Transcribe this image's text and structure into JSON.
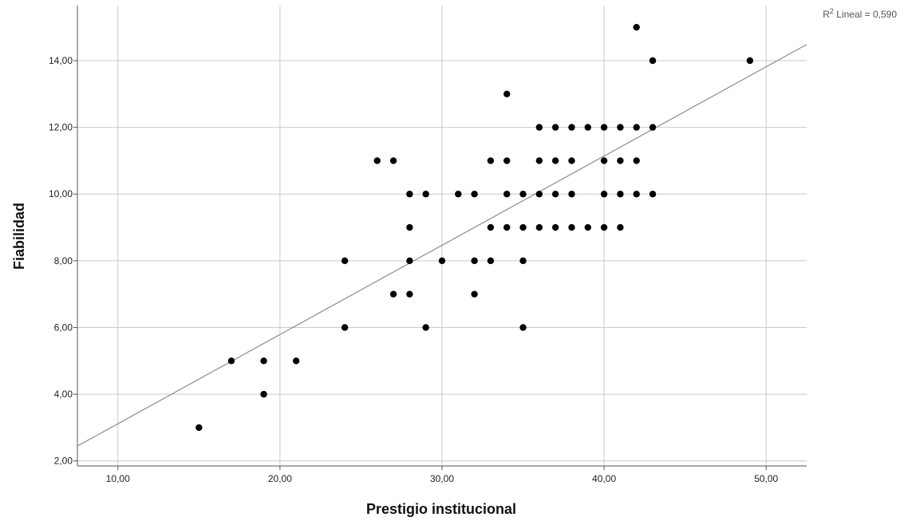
{
  "chart_data": {
    "type": "scatter",
    "xlabel": "Prestigio institucional",
    "ylabel": "Fiabilidad",
    "xlim": [
      7.5,
      52.5
    ],
    "ylim": [
      1.85,
      15.65
    ],
    "x_ticks": [
      10,
      20,
      30,
      40,
      50
    ],
    "x_tick_labels": [
      "10,00",
      "20,00",
      "30,00",
      "40,00",
      "50,00"
    ],
    "y_ticks": [
      2,
      4,
      6,
      8,
      10,
      12,
      14
    ],
    "y_tick_labels": [
      "2,00",
      "4,00",
      "6,00",
      "8,00",
      "10,00",
      "12,00",
      "14,00"
    ],
    "grid": true,
    "fit_line": {
      "label_prefix": "R",
      "label_sup": "2",
      "label_rest": " Lineal = 0,590",
      "slope": 0.2675,
      "intercept": 0.44
    },
    "points": [
      [
        15,
        3
      ],
      [
        17,
        5
      ],
      [
        19,
        5
      ],
      [
        19,
        4
      ],
      [
        21,
        5
      ],
      [
        24,
        8
      ],
      [
        24,
        6
      ],
      [
        26,
        11
      ],
      [
        27,
        11
      ],
      [
        27,
        7
      ],
      [
        28,
        10
      ],
      [
        28,
        9
      ],
      [
        28,
        8
      ],
      [
        28,
        7
      ],
      [
        29,
        10
      ],
      [
        29,
        6
      ],
      [
        30,
        8
      ],
      [
        31,
        10
      ],
      [
        32,
        10
      ],
      [
        32,
        8
      ],
      [
        32,
        7
      ],
      [
        33,
        11
      ],
      [
        33,
        9
      ],
      [
        33,
        8
      ],
      [
        34,
        13
      ],
      [
        34,
        11
      ],
      [
        34,
        10
      ],
      [
        34,
        9
      ],
      [
        35,
        10
      ],
      [
        35,
        9
      ],
      [
        35,
        8
      ],
      [
        35,
        6
      ],
      [
        36,
        12
      ],
      [
        36,
        11
      ],
      [
        36,
        10
      ],
      [
        36,
        9
      ],
      [
        37,
        12
      ],
      [
        37,
        11
      ],
      [
        37,
        10
      ],
      [
        37,
        9
      ],
      [
        38,
        12
      ],
      [
        38,
        11
      ],
      [
        38,
        10
      ],
      [
        38,
        9
      ],
      [
        39,
        12
      ],
      [
        39,
        9
      ],
      [
        40,
        12
      ],
      [
        40,
        11
      ],
      [
        40,
        10
      ],
      [
        40,
        9
      ],
      [
        41,
        12
      ],
      [
        41,
        11
      ],
      [
        41,
        10
      ],
      [
        41,
        9
      ],
      [
        42,
        15
      ],
      [
        42,
        12
      ],
      [
        42,
        11
      ],
      [
        42,
        10
      ],
      [
        43,
        14
      ],
      [
        43,
        12
      ],
      [
        43,
        10
      ],
      [
        49,
        14
      ]
    ]
  },
  "colors": {
    "grid": "#c9c9c9",
    "axis": "#555555",
    "point": "#000000",
    "fit_line": "#8c8c8c"
  }
}
